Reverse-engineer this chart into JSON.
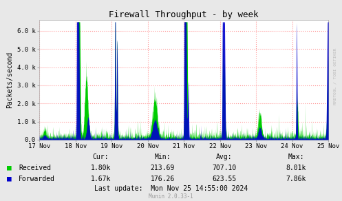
{
  "title": "Firewall Throughput - by week",
  "ylabel": "Packets/second",
  "bg_color": "#e8e8e8",
  "plot_bg_color": "#ffffff",
  "grid_color": "#ff9999",
  "yticks": [
    0,
    1000,
    2000,
    3000,
    4000,
    5000,
    6000
  ],
  "ytick_labels": [
    "0.0",
    "1.0 k",
    "2.0 k",
    "3.0 k",
    "4.0 k",
    "5.0 k",
    "6.0 k"
  ],
  "ylim": [
    0,
    6600
  ],
  "xtick_labels": [
    "17 Nov",
    "18 Nov",
    "19 Nov",
    "20 Nov",
    "21 Nov",
    "22 Nov",
    "23 Nov",
    "24 Nov",
    "25 Nov"
  ],
  "legend_received": "Received",
  "legend_forwarded": "Forwarded",
  "color_received": "#00cc00",
  "color_forwarded": "#0000cc",
  "watermark": "RRDTOOL / TOBI OETIKER",
  "footer_munin": "Munin 2.0.33-1",
  "footer_lastupdate": "Last update:  Mon Nov 25 14:55:00 2024",
  "stats_cur_recv": "1.80k",
  "stats_cur_fwd": "1.67k",
  "stats_min_recv": "213.69",
  "stats_min_fwd": "176.26",
  "stats_avg_recv": "707.10",
  "stats_avg_fwd": "623.55",
  "stats_max_recv": "8.01k",
  "stats_max_fwd": "7.86k"
}
